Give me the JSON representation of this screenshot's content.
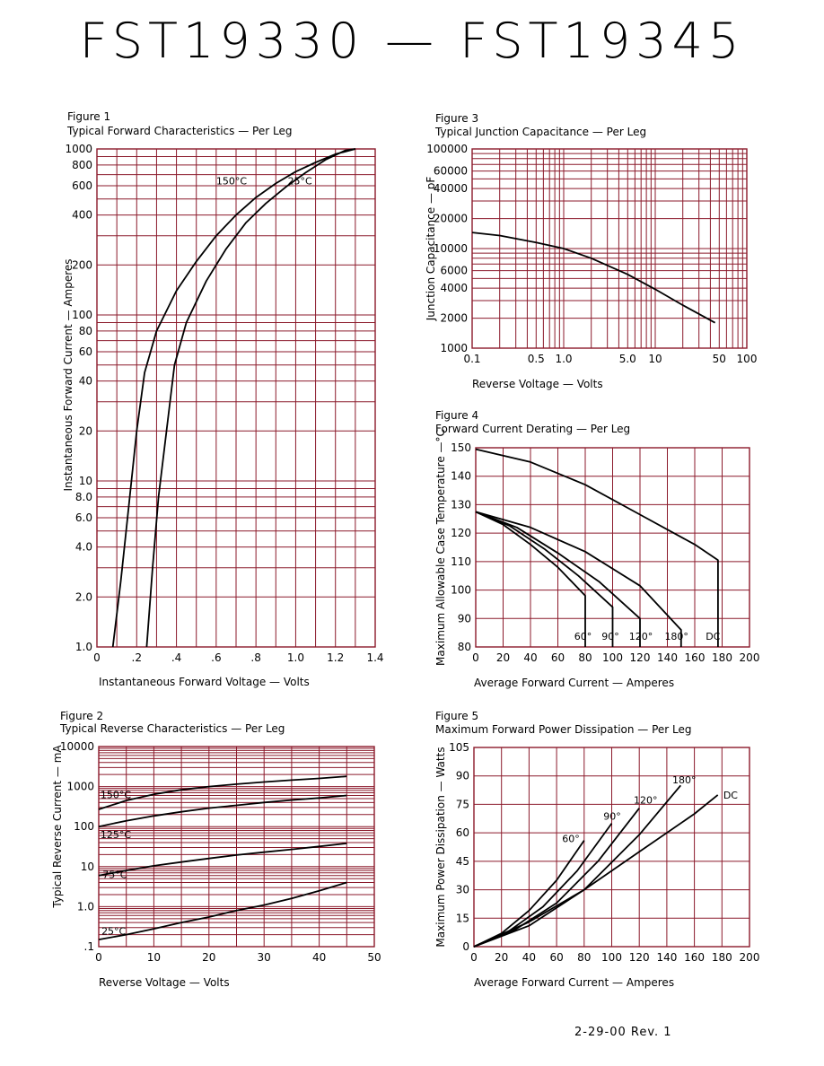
{
  "page_title": "FST19330 — FST19345",
  "footer": {
    "revision": "2-29-00    Rev. 1"
  },
  "colors": {
    "grid": "#8b1a2b",
    "curve": "#000000",
    "background": "#ffffff"
  },
  "chart_data": [
    {
      "id": "fig1",
      "type": "line",
      "figure_label": "Figure 1",
      "title": "Typical Forward Characteristics — Per Leg",
      "xlabel": "Instantaneous Forward Voltage — Volts",
      "ylabel": "Instantaneous Forward Current — Amperes",
      "xscale": "linear",
      "yscale": "log",
      "xlim": [
        0,
        1.4
      ],
      "ylim": [
        1,
        1000
      ],
      "xticks": [
        {
          "v": 0,
          "t": "0"
        },
        {
          "v": 0.2,
          "t": ".2"
        },
        {
          "v": 0.4,
          "t": ".4"
        },
        {
          "v": 0.6,
          "t": ".6"
        },
        {
          "v": 0.8,
          "t": ".8"
        },
        {
          "v": 1.0,
          "t": "1.0"
        },
        {
          "v": 1.2,
          "t": "1.2"
        },
        {
          "v": 1.4,
          "t": "1.4"
        }
      ],
      "yticks": [
        {
          "v": 1,
          "t": "1.0"
        },
        {
          "v": 2,
          "t": "2.0"
        },
        {
          "v": 4,
          "t": "4.0"
        },
        {
          "v": 6,
          "t": "6.0"
        },
        {
          "v": 8,
          "t": "8.0"
        },
        {
          "v": 10,
          "t": "10"
        },
        {
          "v": 20,
          "t": "20"
        },
        {
          "v": 40,
          "t": "40"
        },
        {
          "v": 60,
          "t": "60"
        },
        {
          "v": 80,
          "t": "80"
        },
        {
          "v": 100,
          "t": "100"
        },
        {
          "v": 200,
          "t": "200"
        },
        {
          "v": 400,
          "t": "400"
        },
        {
          "v": 600,
          "t": "600"
        },
        {
          "v": 800,
          "t": "800"
        },
        {
          "v": 1000,
          "t": "1000"
        }
      ],
      "xgrid": [
        0,
        0.1,
        0.2,
        0.3,
        0.4,
        0.5,
        0.6,
        0.7,
        0.8,
        0.9,
        1.0,
        1.1,
        1.2,
        1.3,
        1.4
      ],
      "ygrid": [
        1,
        2,
        3,
        4,
        5,
        6,
        7,
        8,
        9,
        10,
        20,
        30,
        40,
        50,
        60,
        70,
        80,
        90,
        100,
        200,
        300,
        400,
        500,
        600,
        700,
        800,
        900,
        1000
      ],
      "series": [
        {
          "name": "150°C",
          "label_at": [
            0.6,
            610
          ],
          "x": [
            0.08,
            0.12,
            0.16,
            0.2,
            0.24,
            0.3,
            0.4,
            0.5,
            0.6,
            0.7,
            0.8,
            0.9,
            1.0,
            1.1,
            1.2,
            1.3
          ],
          "y": [
            1,
            2.5,
            7,
            20,
            45,
            80,
            140,
            210,
            300,
            400,
            510,
            620,
            730,
            830,
            930,
            1000
          ]
        },
        {
          "name": "25°C",
          "label_at": [
            0.96,
            610
          ],
          "x": [
            0.25,
            0.28,
            0.31,
            0.35,
            0.39,
            0.45,
            0.55,
            0.65,
            0.75,
            0.85,
            0.95,
            1.05,
            1.15,
            1.25,
            1.3
          ],
          "y": [
            1,
            3,
            8,
            20,
            50,
            90,
            160,
            250,
            360,
            470,
            590,
            720,
            860,
            980,
            1000
          ]
        }
      ]
    },
    {
      "id": "fig2",
      "type": "line",
      "figure_label": "Figure 2",
      "title": "Typical Reverse Characteristics — Per Leg",
      "xlabel": "Reverse Voltage — Volts",
      "ylabel": "Typical Reverse Current — mA",
      "xscale": "linear",
      "yscale": "log",
      "xlim": [
        0,
        50
      ],
      "ylim": [
        0.1,
        10000
      ],
      "xticks": [
        {
          "v": 0,
          "t": "0"
        },
        {
          "v": 10,
          "t": "10"
        },
        {
          "v": 20,
          "t": "20"
        },
        {
          "v": 30,
          "t": "30"
        },
        {
          "v": 40,
          "t": "40"
        },
        {
          "v": 50,
          "t": "50"
        }
      ],
      "yticks": [
        {
          "v": 0.1,
          "t": ".1"
        },
        {
          "v": 1,
          "t": "1.0"
        },
        {
          "v": 10,
          "t": "10"
        },
        {
          "v": 100,
          "t": "100"
        },
        {
          "v": 1000,
          "t": "1000"
        },
        {
          "v": 10000,
          "t": "10000"
        }
      ],
      "xgrid": [
        0,
        5,
        10,
        15,
        20,
        25,
        30,
        35,
        40,
        45,
        50
      ],
      "ygrid": [
        0.1,
        0.2,
        0.3,
        0.4,
        0.5,
        0.6,
        0.7,
        0.8,
        0.9,
        1,
        2,
        3,
        4,
        5,
        6,
        7,
        8,
        9,
        10,
        20,
        30,
        40,
        50,
        60,
        70,
        80,
        90,
        100,
        200,
        300,
        400,
        500,
        600,
        700,
        800,
        900,
        1000,
        2000,
        3000,
        4000,
        5000,
        6000,
        7000,
        8000,
        9000,
        10000
      ],
      "series": [
        {
          "name": "150°C",
          "label_at": [
            0.3,
            520
          ],
          "x": [
            0,
            5,
            10,
            15,
            20,
            25,
            30,
            35,
            40,
            45
          ],
          "y": [
            270,
            450,
            640,
            830,
            1000,
            1150,
            1300,
            1450,
            1600,
            1800
          ]
        },
        {
          "name": "125°C",
          "label_at": [
            0.3,
            52
          ],
          "x": [
            0,
            5,
            10,
            15,
            20,
            25,
            30,
            35,
            40,
            45
          ],
          "y": [
            100,
            140,
            185,
            235,
            290,
            340,
            400,
            460,
            520,
            600
          ]
        },
        {
          "name": "75°C",
          "label_at": [
            0.7,
            5.2
          ],
          "x": [
            0,
            5,
            10,
            15,
            20,
            25,
            30,
            35,
            40,
            45
          ],
          "y": [
            6,
            8,
            10.5,
            13,
            16,
            19.5,
            23,
            27,
            32,
            38
          ]
        },
        {
          "name": "25°C",
          "label_at": [
            0.5,
            0.2
          ],
          "x": [
            0,
            5,
            10,
            15,
            20,
            25,
            30,
            35,
            40,
            45
          ],
          "y": [
            0.15,
            0.2,
            0.28,
            0.4,
            0.55,
            0.8,
            1.1,
            1.6,
            2.5,
            4
          ]
        }
      ]
    },
    {
      "id": "fig3",
      "type": "line",
      "figure_label": "Figure 3",
      "title": "Typical Junction Capacitance — Per Leg",
      "xlabel": "Reverse Voltage — Volts",
      "ylabel": "Junction Capacitance — pF",
      "xscale": "log",
      "yscale": "log",
      "xlim": [
        0.1,
        100
      ],
      "ylim": [
        1000,
        100000
      ],
      "xticks": [
        {
          "v": 0.1,
          "t": "0.1"
        },
        {
          "v": 0.5,
          "t": "0.5"
        },
        {
          "v": 1,
          "t": "1.0"
        },
        {
          "v": 5,
          "t": "5.0"
        },
        {
          "v": 10,
          "t": "10"
        },
        {
          "v": 50,
          "t": "50"
        },
        {
          "v": 100,
          "t": "100"
        }
      ],
      "yticks": [
        {
          "v": 1000,
          "t": "1000"
        },
        {
          "v": 2000,
          "t": "2000"
        },
        {
          "v": 4000,
          "t": "4000"
        },
        {
          "v": 6000,
          "t": "6000"
        },
        {
          "v": 10000,
          "t": "10000"
        },
        {
          "v": 20000,
          "t": "20000"
        },
        {
          "v": 40000,
          "t": "40000"
        },
        {
          "v": 60000,
          "t": "60000"
        },
        {
          "v": 100000,
          "t": "100000"
        }
      ],
      "xgrid": [
        0.1,
        0.2,
        0.3,
        0.4,
        0.5,
        0.6,
        0.7,
        0.8,
        0.9,
        1,
        2,
        3,
        4,
        5,
        6,
        7,
        8,
        9,
        10,
        20,
        30,
        40,
        50,
        60,
        70,
        80,
        90,
        100
      ],
      "ygrid": [
        1000,
        2000,
        3000,
        4000,
        5000,
        6000,
        7000,
        8000,
        9000,
        10000,
        20000,
        30000,
        40000,
        50000,
        60000,
        70000,
        80000,
        90000,
        100000
      ],
      "series": [
        {
          "x": [
            0.1,
            0.2,
            0.5,
            1,
            2,
            5,
            10,
            20,
            45
          ],
          "y": [
            14500,
            13500,
            11500,
            10000,
            8000,
            5500,
            3900,
            2700,
            1800
          ]
        }
      ]
    },
    {
      "id": "fig4",
      "type": "line",
      "figure_label": "Figure 4",
      "title": "Forward Current Derating — Per Leg",
      "xlabel": "Average Forward Current — Amperes",
      "ylabel": "Maximum Allowable Case Temperature —°C",
      "xscale": "linear",
      "yscale": "linear",
      "xlim": [
        0,
        200
      ],
      "ylim": [
        80,
        150
      ],
      "xticks": [
        {
          "v": 0,
          "t": "0"
        },
        {
          "v": 20,
          "t": "20"
        },
        {
          "v": 40,
          "t": "40"
        },
        {
          "v": 60,
          "t": "60"
        },
        {
          "v": 80,
          "t": "80"
        },
        {
          "v": 100,
          "t": "100"
        },
        {
          "v": 120,
          "t": "120"
        },
        {
          "v": 140,
          "t": "140"
        },
        {
          "v": 160,
          "t": "160"
        },
        {
          "v": 180,
          "t": "180"
        },
        {
          "v": 200,
          "t": "200"
        }
      ],
      "yticks": [
        {
          "v": 80,
          "t": "80"
        },
        {
          "v": 90,
          "t": "90"
        },
        {
          "v": 100,
          "t": "100"
        },
        {
          "v": 110,
          "t": "110"
        },
        {
          "v": 120,
          "t": "120"
        },
        {
          "v": 130,
          "t": "130"
        },
        {
          "v": 140,
          "t": "140"
        },
        {
          "v": 150,
          "t": "150"
        }
      ],
      "xgrid": [
        0,
        20,
        40,
        60,
        80,
        100,
        120,
        140,
        160,
        180,
        200
      ],
      "ygrid": [
        80,
        90,
        100,
        110,
        120,
        130,
        140,
        150
      ],
      "series": [
        {
          "name": "60°",
          "label_at": [
            72,
            82.5
          ],
          "x": [
            0,
            20,
            40,
            60,
            80,
            80
          ],
          "y": [
            127.5,
            123,
            116,
            108,
            98,
            80
          ]
        },
        {
          "name": "90°",
          "label_at": [
            92,
            82.5
          ],
          "x": [
            0,
            25,
            50,
            75,
            100,
            100
          ],
          "y": [
            127.5,
            122.5,
            114.5,
            105,
            94,
            80
          ]
        },
        {
          "name": "120°",
          "label_at": [
            112,
            82.5
          ],
          "x": [
            0,
            30,
            60,
            90,
            120,
            120
          ],
          "y": [
            127.5,
            122,
            113,
            103,
            90,
            80
          ]
        },
        {
          "name": "180°",
          "label_at": [
            138,
            82.5
          ],
          "x": [
            0,
            40,
            80,
            120,
            150,
            150
          ],
          "y": [
            127.5,
            122,
            113.5,
            101.5,
            86,
            80
          ]
        },
        {
          "name": "DC",
          "label_at": [
            168,
            82.5
          ],
          "x": [
            0,
            40,
            80,
            120,
            160,
            177,
            177
          ],
          "y": [
            149.5,
            145,
            137,
            126.5,
            116,
            110.5,
            80
          ]
        }
      ]
    },
    {
      "id": "fig5",
      "type": "line",
      "figure_label": "Figure 5",
      "title": "Maximum Forward Power Dissipation — Per Leg",
      "xlabel": "Average Forward Current — Amperes",
      "ylabel": "Maximum Power Dissipation — Watts",
      "xscale": "linear",
      "yscale": "linear",
      "xlim": [
        0,
        200
      ],
      "ylim": [
        0,
        105
      ],
      "xticks": [
        {
          "v": 0,
          "t": "0"
        },
        {
          "v": 20,
          "t": "20"
        },
        {
          "v": 40,
          "t": "40"
        },
        {
          "v": 60,
          "t": "60"
        },
        {
          "v": 80,
          "t": "80"
        },
        {
          "v": 100,
          "t": "100"
        },
        {
          "v": 120,
          "t": "120"
        },
        {
          "v": 140,
          "t": "140"
        },
        {
          "v": 160,
          "t": "160"
        },
        {
          "v": 180,
          "t": "180"
        },
        {
          "v": 200,
          "t": "200"
        }
      ],
      "yticks": [
        {
          "v": 0,
          "t": "0"
        },
        {
          "v": 15,
          "t": "15"
        },
        {
          "v": 30,
          "t": "30"
        },
        {
          "v": 45,
          "t": "45"
        },
        {
          "v": 60,
          "t": "60"
        },
        {
          "v": 75,
          "t": "75"
        },
        {
          "v": 90,
          "t": "90"
        },
        {
          "v": 105,
          "t": "105"
        }
      ],
      "xgrid": [
        0,
        20,
        40,
        60,
        80,
        100,
        120,
        140,
        160,
        180,
        200
      ],
      "ygrid": [
        0,
        15,
        30,
        45,
        60,
        75,
        90,
        105
      ],
      "series": [
        {
          "name": "60°",
          "label_at": [
            64,
            55
          ],
          "x": [
            0,
            20,
            40,
            60,
            80
          ],
          "y": [
            0,
            7,
            19,
            35,
            56
          ]
        },
        {
          "name": "90°",
          "label_at": [
            94,
            67
          ],
          "x": [
            0,
            25,
            50,
            75,
            100
          ],
          "y": [
            0,
            8,
            21,
            40,
            65
          ]
        },
        {
          "name": "120°",
          "label_at": [
            116,
            75.5
          ],
          "x": [
            0,
            30,
            60,
            90,
            120
          ],
          "y": [
            0,
            9,
            23,
            45,
            73
          ]
        },
        {
          "name": "180°",
          "label_at": [
            144,
            86
          ],
          "x": [
            0,
            40,
            80,
            120,
            150
          ],
          "y": [
            0,
            11,
            30,
            59,
            85
          ]
        },
        {
          "name": "DC",
          "label_at": [
            181,
            78
          ],
          "x": [
            0,
            40,
            80,
            120,
            160,
            177
          ],
          "y": [
            0,
            13,
            30,
            50,
            70,
            80
          ]
        }
      ]
    }
  ]
}
